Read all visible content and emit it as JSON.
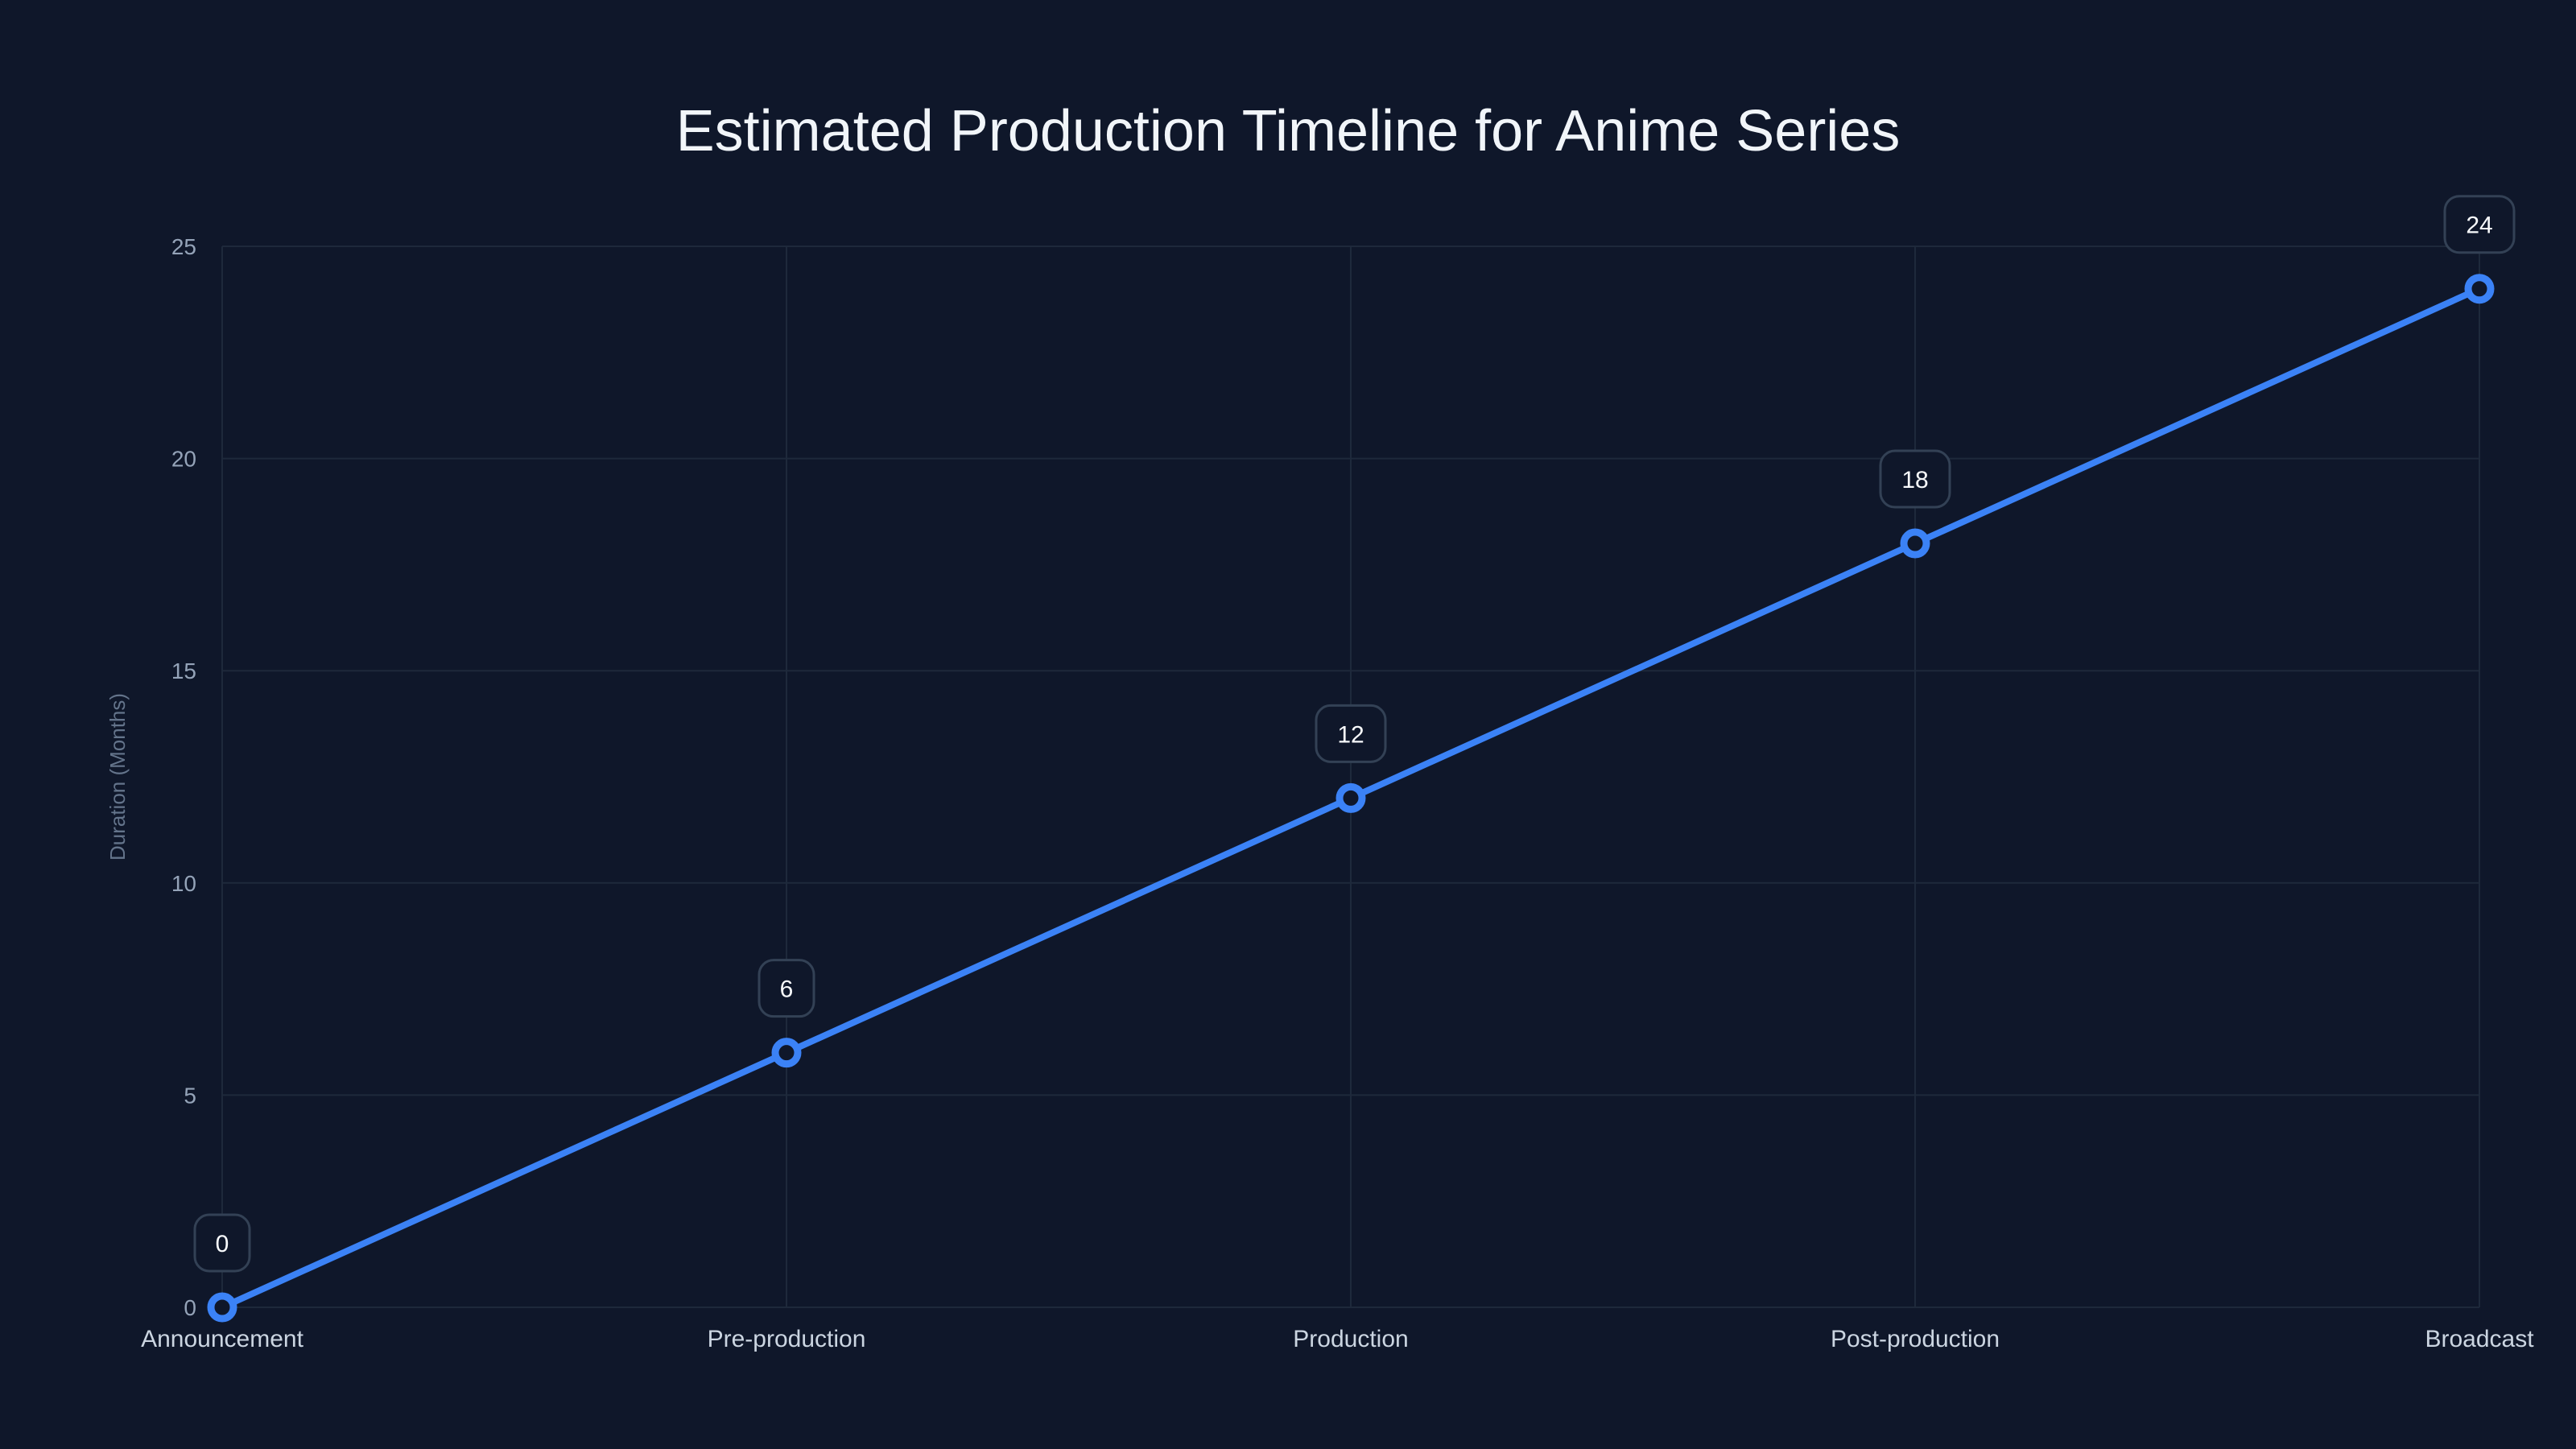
{
  "chart_data": {
    "type": "line",
    "title": "Estimated Production Timeline for Anime Series",
    "xlabel": "",
    "ylabel": "Duration (Months)",
    "categories": [
      "Announcement",
      "Pre-production",
      "Production",
      "Post-production",
      "Broadcast"
    ],
    "series": [
      {
        "name": "Duration (Months)",
        "values": [
          0,
          6,
          12,
          18,
          24
        ],
        "color": "#3b82f6"
      }
    ],
    "ylim": [
      0,
      25
    ],
    "yticks": [
      0,
      5,
      10,
      15,
      20,
      25
    ],
    "grid": true,
    "legend": "none",
    "data_labels": true
  },
  "colors": {
    "background": "#0f172a",
    "line": "#3b82f6",
    "grid": "#1e293b",
    "label_box_border": "#334155"
  }
}
